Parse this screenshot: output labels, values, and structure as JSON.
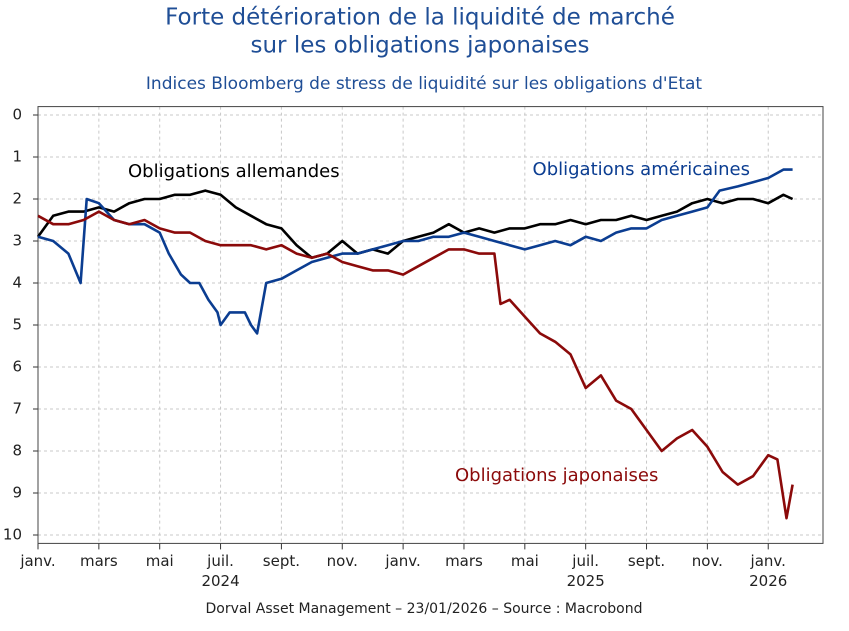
{
  "chart_data": {
    "type": "line",
    "title": [
      "Forte détérioration de la liquidité de marché",
      "sur les obligations japonaises"
    ],
    "subtitle": "Indices Bloomberg de stress de liquidité sur les obligations d'Etat",
    "source": "Dorval Asset Management – 23/01/2026   –   Source : Macrobond",
    "inverted": true,
    "grid": true,
    "ylim": [
      -0.2,
      10.2
    ],
    "yticks": [
      0,
      1,
      2,
      3,
      4,
      5,
      6,
      7,
      8,
      9,
      10
    ],
    "xlim": [
      0,
      25.8
    ],
    "xticks": [
      {
        "value": 0,
        "label": "janv."
      },
      {
        "value": 2,
        "label": "mars"
      },
      {
        "value": 4,
        "label": "mai"
      },
      {
        "value": 6,
        "label": "juil."
      },
      {
        "value": 8,
        "label": "sept."
      },
      {
        "value": 10,
        "label": "nov."
      },
      {
        "value": 12,
        "label": "janv."
      },
      {
        "value": 14,
        "label": "mars"
      },
      {
        "value": 16,
        "label": "mai"
      },
      {
        "value": 18,
        "label": "juil."
      },
      {
        "value": 20,
        "label": "sept."
      },
      {
        "value": 22,
        "label": "nov."
      },
      {
        "value": 24,
        "label": "janv."
      }
    ],
    "year_labels": [
      {
        "value": 6,
        "label": "2024"
      },
      {
        "value": 18,
        "label": "2025"
      },
      {
        "value": 24,
        "label": "2026"
      }
    ],
    "series": [
      {
        "name": "Obligations allemandes",
        "color": "#000000",
        "x": [
          0,
          0.5,
          1,
          1.5,
          2,
          2.5,
          3,
          3.5,
          4,
          4.5,
          5,
          5.5,
          6,
          6.5,
          7,
          7.5,
          8,
          8.5,
          9,
          9.5,
          10,
          10.5,
          11,
          11.5,
          12,
          12.5,
          13,
          13.5,
          14,
          14.5,
          15,
          15.5,
          16,
          16.5,
          17,
          17.5,
          18,
          18.5,
          19,
          19.5,
          20,
          20.5,
          21,
          21.5,
          22,
          22.5,
          23,
          23.5,
          24,
          24.5,
          24.8
        ],
        "values": [
          2.9,
          2.4,
          2.3,
          2.3,
          2.2,
          2.3,
          2.1,
          2.0,
          2.0,
          1.9,
          1.9,
          1.8,
          1.9,
          2.2,
          2.4,
          2.6,
          2.7,
          3.1,
          3.4,
          3.3,
          3.0,
          3.3,
          3.2,
          3.3,
          3.0,
          2.9,
          2.8,
          2.6,
          2.8,
          2.7,
          2.8,
          2.7,
          2.7,
          2.6,
          2.6,
          2.5,
          2.6,
          2.5,
          2.5,
          2.4,
          2.5,
          2.4,
          2.3,
          2.1,
          2.0,
          2.1,
          2.0,
          2.0,
          2.1,
          1.9,
          2.0
        ]
      },
      {
        "name": "Obligations américaines",
        "color": "#0b3d91",
        "x": [
          0,
          0.5,
          1,
          1.4,
          1.6,
          2,
          2.5,
          3,
          3.5,
          4,
          4.3,
          4.7,
          5,
          5.3,
          5.6,
          5.9,
          6,
          6.3,
          6.8,
          7,
          7.2,
          7.5,
          8,
          8.5,
          9,
          9.5,
          10,
          10.5,
          11,
          11.5,
          12,
          12.5,
          13,
          13.5,
          14,
          14.5,
          15,
          15.5,
          16,
          16.5,
          17,
          17.5,
          18,
          18.5,
          19,
          19.5,
          20,
          20.5,
          21,
          21.5,
          22,
          22.4,
          23,
          23.5,
          24,
          24.5,
          24.8
        ],
        "values": [
          2.9,
          3.0,
          3.3,
          4.0,
          2.0,
          2.1,
          2.5,
          2.6,
          2.6,
          2.8,
          3.3,
          3.8,
          4.0,
          4.0,
          4.4,
          4.7,
          5.0,
          4.7,
          4.7,
          5.0,
          5.2,
          4.0,
          3.9,
          3.7,
          3.5,
          3.4,
          3.3,
          3.3,
          3.2,
          3.1,
          3.0,
          3.0,
          2.9,
          2.9,
          2.8,
          2.9,
          3.0,
          3.1,
          3.2,
          3.1,
          3.0,
          3.1,
          2.9,
          3.0,
          2.8,
          2.7,
          2.7,
          2.5,
          2.4,
          2.3,
          2.2,
          1.8,
          1.7,
          1.6,
          1.5,
          1.3,
          1.3
        ]
      },
      {
        "name": "Obligations japonaises",
        "color": "#8b0a0a",
        "x": [
          0,
          0.5,
          1,
          1.5,
          2,
          2.5,
          3,
          3.5,
          4,
          4.5,
          5,
          5.5,
          6,
          6.5,
          7,
          7.5,
          8,
          8.5,
          9,
          9.5,
          10,
          10.5,
          11,
          11.5,
          12,
          12.5,
          13,
          13.5,
          14,
          14.5,
          15,
          15.2,
          15.5,
          16,
          16.5,
          17,
          17.5,
          18,
          18.5,
          19,
          19.5,
          20,
          20.5,
          21,
          21.5,
          22,
          22.5,
          23,
          23.5,
          24,
          24.3,
          24.6,
          24.8
        ],
        "values": [
          2.4,
          2.6,
          2.6,
          2.5,
          2.3,
          2.5,
          2.6,
          2.5,
          2.7,
          2.8,
          2.8,
          3.0,
          3.1,
          3.1,
          3.1,
          3.2,
          3.1,
          3.3,
          3.4,
          3.3,
          3.5,
          3.6,
          3.7,
          3.7,
          3.8,
          3.6,
          3.4,
          3.2,
          3.2,
          3.3,
          3.3,
          4.5,
          4.4,
          4.8,
          5.2,
          5.4,
          5.7,
          6.5,
          6.2,
          6.8,
          7.0,
          7.5,
          8.0,
          7.7,
          7.5,
          7.9,
          8.5,
          8.8,
          8.6,
          8.1,
          8.2,
          9.6,
          8.8
        ]
      }
    ]
  }
}
